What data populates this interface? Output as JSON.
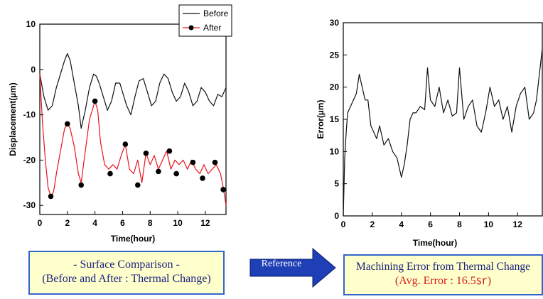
{
  "colors": {
    "before": "#111111",
    "after": "#e8131b",
    "marker": "#000000",
    "caption_bg": "#ffffcc",
    "caption_border": "#3366cc",
    "caption_text": "#1a237e",
    "caption_highlight": "#d81b1b",
    "arrow": "#1f3fb6"
  },
  "chart_data": [
    {
      "type": "line",
      "title": "",
      "xlabel": "Time(hour)",
      "ylabel": "Displacement(µm)",
      "xlim": [
        0,
        13.5
      ],
      "ylim": [
        -32,
        10
      ],
      "xticks": [
        "0",
        "2",
        "4",
        "6",
        "8",
        "10",
        "12"
      ],
      "xtick_values": [
        0,
        2,
        4,
        6,
        8,
        10,
        12
      ],
      "yticks": [
        "10",
        "0",
        "-10",
        "-20",
        "-30"
      ],
      "ytick_values": [
        10,
        0,
        -10,
        -20,
        -30
      ],
      "legend_position": "top-right",
      "series": [
        {
          "name": "Before",
          "x": [
            0,
            0.3,
            0.6,
            0.9,
            1.2,
            1.5,
            1.8,
            2.0,
            2.2,
            2.5,
            2.8,
            3.0,
            3.3,
            3.6,
            3.9,
            4.1,
            4.3,
            4.6,
            4.9,
            5.2,
            5.5,
            5.8,
            6.0,
            6.3,
            6.6,
            6.9,
            7.2,
            7.5,
            7.8,
            8.1,
            8.4,
            8.7,
            9.0,
            9.3,
            9.6,
            9.9,
            10.2,
            10.5,
            10.8,
            11.1,
            11.4,
            11.7,
            12.0,
            12.3,
            12.6,
            12.9,
            13.2,
            13.5
          ],
          "y": [
            -1,
            -6,
            -9,
            -8,
            -4,
            -1,
            2,
            3.5,
            2,
            -3,
            -8,
            -13,
            -9,
            -4,
            -1,
            -1.5,
            -3,
            -6,
            -9,
            -7,
            -3,
            -3,
            -5,
            -8,
            -10,
            -6,
            -2.5,
            -2,
            -5,
            -8,
            -7,
            -3,
            -1,
            -2,
            -5,
            -7,
            -6,
            -3,
            -5,
            -8,
            -7,
            -4,
            -5,
            -7,
            -8,
            -5.5,
            -6,
            -4
          ]
        },
        {
          "name": "After",
          "x": [
            0,
            0.2,
            0.4,
            0.6,
            0.8,
            1.0,
            1.2,
            1.5,
            1.8,
            2.0,
            2.2,
            2.5,
            2.8,
            3.0,
            3.3,
            3.6,
            3.9,
            4.0,
            4.2,
            4.4,
            4.7,
            5.0,
            5.3,
            5.6,
            5.9,
            6.2,
            6.5,
            6.8,
            7.1,
            7.4,
            7.7,
            8.0,
            8.3,
            8.6,
            8.9,
            9.2,
            9.5,
            9.8,
            10.1,
            10.4,
            10.7,
            11.0,
            11.3,
            11.6,
            11.9,
            12.2,
            12.5,
            12.8,
            13.1,
            13.3,
            13.5
          ],
          "y": [
            -1,
            -12,
            -20,
            -26,
            -28,
            -27,
            -23,
            -18,
            -13,
            -12,
            -13,
            -17,
            -23,
            -25,
            -18,
            -11,
            -8,
            -7,
            -9,
            -16,
            -21,
            -22,
            -21,
            -22,
            -19,
            -16.5,
            -22,
            -23,
            -20,
            -25,
            -18.5,
            -21,
            -19,
            -22,
            -20,
            -18,
            -22,
            -20,
            -21,
            -20,
            -22,
            -20,
            -22,
            -23,
            -21,
            -23,
            -22,
            -21,
            -23,
            -26,
            -30
          ]
        }
      ],
      "markers": {
        "series": "After",
        "x": [
          0.8,
          2.0,
          3.0,
          4.0,
          5.1,
          6.2,
          7.1,
          7.7,
          8.6,
          9.4,
          9.9,
          11.1,
          11.8,
          12.7,
          13.3
        ],
        "y": [
          -28,
          -12,
          -25.5,
          -7,
          -23,
          -16.5,
          -25.5,
          -18.5,
          -22.5,
          -18,
          -23,
          -20.5,
          -24,
          -20.5,
          -26.5
        ]
      }
    },
    {
      "type": "line",
      "title": "",
      "xlabel": "Time(hour)",
      "ylabel": "Error(µm)",
      "xlim": [
        0,
        13.7
      ],
      "ylim": [
        0,
        30
      ],
      "xticks": [
        "0",
        "2",
        "4",
        "6",
        "8",
        "10",
        "12"
      ],
      "xtick_values": [
        0,
        2,
        4,
        6,
        8,
        10,
        12
      ],
      "yticks": [
        "0",
        "5",
        "10",
        "15",
        "20",
        "25",
        "30"
      ],
      "ytick_values": [
        0,
        5,
        10,
        15,
        20,
        25,
        30
      ],
      "series": [
        {
          "name": "",
          "x": [
            0,
            0.1,
            0.2,
            0.3,
            0.5,
            0.7,
            0.9,
            1.1,
            1.3,
            1.5,
            1.7,
            1.9,
            2.1,
            2.3,
            2.5,
            2.8,
            3.1,
            3.4,
            3.7,
            4.0,
            4.2,
            4.4,
            4.6,
            4.8,
            5.0,
            5.3,
            5.6,
            5.8,
            6.0,
            6.3,
            6.6,
            6.9,
            7.2,
            7.5,
            7.8,
            8.0,
            8.3,
            8.6,
            8.9,
            9.2,
            9.5,
            9.8,
            10.1,
            10.4,
            10.7,
            11.0,
            11.3,
            11.6,
            11.9,
            12.2,
            12.5,
            12.8,
            13.1,
            13.3,
            13.5,
            13.7
          ],
          "y": [
            0,
            9,
            13,
            16,
            17,
            18,
            19,
            22,
            20,
            18,
            18,
            14,
            13,
            12,
            14,
            11,
            12,
            10,
            9,
            6,
            8,
            11,
            15,
            16,
            16,
            17,
            16.5,
            23,
            18,
            17,
            20,
            16,
            18,
            15.5,
            16,
            23,
            15,
            17,
            18,
            14,
            13,
            16,
            20,
            17,
            18,
            15,
            17,
            13,
            17,
            19,
            20,
            15,
            16,
            18,
            22,
            26
          ]
        }
      ]
    }
  ],
  "caption_left": {
    "line1": "- Surface Comparison -",
    "line2": "(Before and After : Thermal Change)"
  },
  "arrow_label": "Reference",
  "caption_right": {
    "line1": "Machining Error from Thermal Change",
    "line2_prefix": "(",
    "line2_highlight": "Avg. Error : 16.5㏛",
    "line2_suffix": ")"
  }
}
